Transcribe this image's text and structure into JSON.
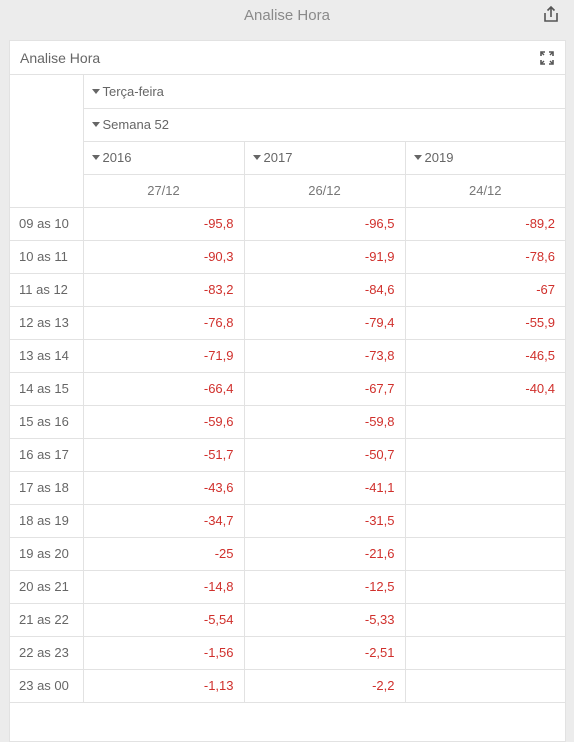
{
  "app": {
    "title": "Analise Hora"
  },
  "card": {
    "title": "Analise Hora"
  },
  "pivot": {
    "day_label": "Terça-feira",
    "week_label": "Semana 52",
    "years": [
      "2016",
      "2017",
      "2019"
    ],
    "dates": [
      "27/12",
      "26/12",
      "24/12"
    ],
    "rows": [
      {
        "label": "09 as 10",
        "values": [
          "-95,8",
          "-96,5",
          "-89,2"
        ]
      },
      {
        "label": "10 as 11",
        "values": [
          "-90,3",
          "-91,9",
          "-78,6"
        ]
      },
      {
        "label": "11 as 12",
        "values": [
          "-83,2",
          "-84,6",
          "-67"
        ]
      },
      {
        "label": "12 as 13",
        "values": [
          "-76,8",
          "-79,4",
          "-55,9"
        ]
      },
      {
        "label": "13 as 14",
        "values": [
          "-71,9",
          "-73,8",
          "-46,5"
        ]
      },
      {
        "label": "14 as 15",
        "values": [
          "-66,4",
          "-67,7",
          "-40,4"
        ]
      },
      {
        "label": "15 as 16",
        "values": [
          "-59,6",
          "-59,8",
          ""
        ]
      },
      {
        "label": "16 as 17",
        "values": [
          "-51,7",
          "-50,7",
          ""
        ]
      },
      {
        "label": "17 as 18",
        "values": [
          "-43,6",
          "-41,1",
          ""
        ]
      },
      {
        "label": "18 as 19",
        "values": [
          "-34,7",
          "-31,5",
          ""
        ]
      },
      {
        "label": "19 as 20",
        "values": [
          "-25",
          "-21,6",
          ""
        ]
      },
      {
        "label": "20 as 21",
        "values": [
          "-14,8",
          "-12,5",
          ""
        ]
      },
      {
        "label": "21 as 22",
        "values": [
          "-5,54",
          "-5,33",
          ""
        ]
      },
      {
        "label": "22 as 23",
        "values": [
          "-1,56",
          "-2,51",
          ""
        ]
      },
      {
        "label": "23 as 00",
        "values": [
          "-1,13",
          "-2,2",
          ""
        ]
      }
    ]
  },
  "colors": {
    "negative": "#d0302c",
    "border": "#e2e2e2"
  },
  "icons": {
    "share": "share-icon",
    "expand": "expand-icon",
    "caret": "caret-down-icon"
  }
}
